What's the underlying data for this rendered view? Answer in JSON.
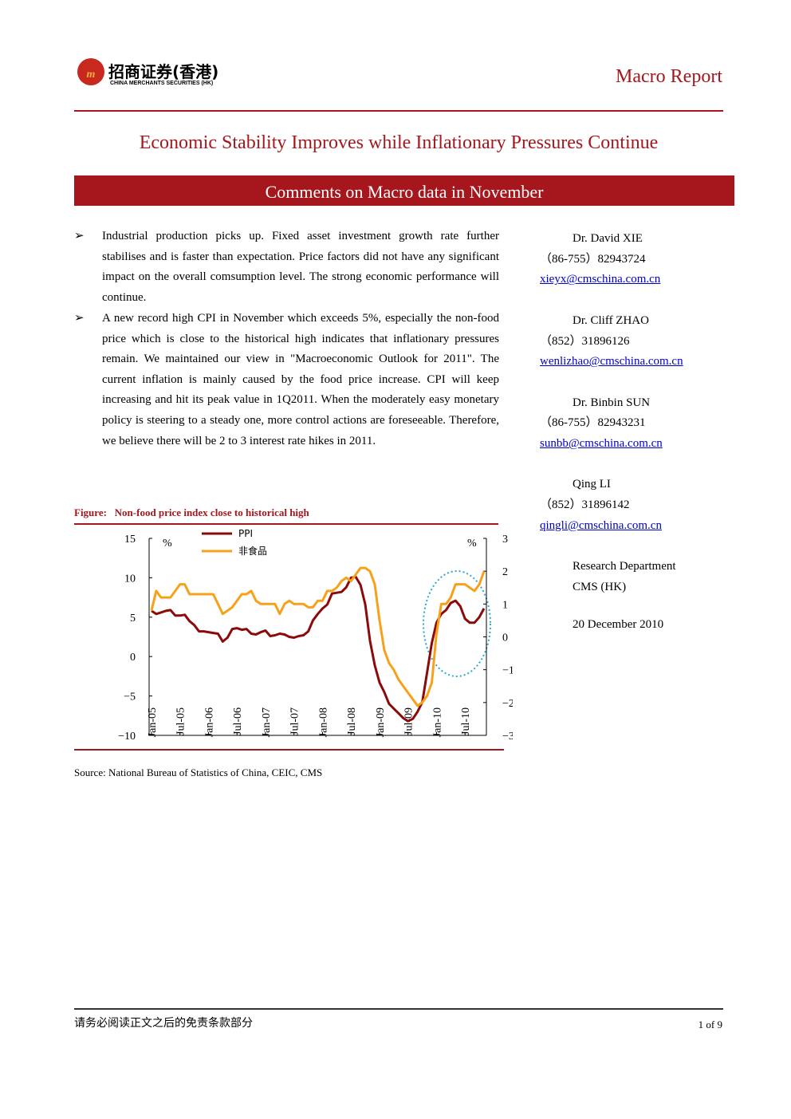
{
  "header": {
    "logo_cn": "招商证券(香港)",
    "logo_en": "CHINA MERCHANTS SECURITIES (HK)",
    "report_type": "Macro Report"
  },
  "title": "Economic Stability Improves while Inflationary Pressures Continue",
  "banner": "Comments on Macro data in November",
  "bullets": [
    "Industrial production picks up. Fixed asset investment growth rate further stabilises and is faster than expectation. Price factors did not have any significant impact on the overall comsumption level. The strong economic performance will continue.",
    "A new record high CPI in November which exceeds 5%, especially the non-food price which is close to the historical high indicates that inflationary pressures remain. We maintained our view in \"Macroeconomic Outlook for 2011\". The current inflation is mainly caused by the food price increase. CPI will keep increasing and hit its peak value in 1Q2011. When the moderately easy monetary policy is steering to a steady one, more control actions are foreseeable. Therefore, we believe there will be 2 to 3 interest rate hikes in 2011."
  ],
  "contacts": [
    {
      "name": "Dr. David XIE",
      "phone": "（86-755）82943724",
      "email": "xieyx@cmschina.com.cn"
    },
    {
      "name": "Dr. Cliff ZHAO",
      "phone": "（852）31896126",
      "email": "wenlizhao@cmschina.com.cn"
    },
    {
      "name": "Dr. Binbin SUN",
      "phone": "（86-755）82943231",
      "email": "sunbb@cmschina.com.cn"
    },
    {
      "name": "Qing LI",
      "phone": "（852）31896142",
      "email": "qingli@cmschina.com.cn"
    }
  ],
  "department": [
    "Research Department",
    "CMS (HK)"
  ],
  "date": "20 December 2010",
  "figure": {
    "label": "Figure:",
    "caption": "Non-food price index close to historical high"
  },
  "chart_data": {
    "type": "line",
    "categories": [
      "Jan-05",
      null,
      null,
      null,
      null,
      null,
      "Jul-05",
      null,
      null,
      null,
      null,
      null,
      "Jan-06",
      null,
      null,
      null,
      null,
      null,
      "Jul-06",
      null,
      null,
      null,
      null,
      null,
      "Jan-07",
      null,
      null,
      null,
      null,
      null,
      "Jul-07",
      null,
      null,
      null,
      null,
      null,
      "Jan-08",
      null,
      null,
      null,
      null,
      null,
      "Jul-08",
      null,
      null,
      null,
      null,
      null,
      "Jan-09",
      null,
      null,
      null,
      null,
      null,
      "Jul-09",
      null,
      null,
      null,
      null,
      null,
      "Jan-10",
      null,
      null,
      null,
      null,
      null,
      "Jul-10",
      null,
      null,
      null,
      null
    ],
    "series": [
      {
        "name": "PPI",
        "color": "#8b0a0a",
        "values": [
          5.8,
          5.4,
          5.6,
          5.8,
          5.9,
          5.2,
          5.2,
          5.3,
          4.5,
          4.0,
          3.2,
          3.2,
          3.1,
          3.0,
          2.9,
          1.9,
          2.4,
          3.5,
          3.6,
          3.4,
          3.5,
          2.9,
          2.8,
          3.1,
          3.3,
          2.6,
          2.7,
          2.9,
          2.8,
          2.5,
          2.4,
          2.6,
          2.7,
          3.2,
          4.6,
          5.4,
          6.1,
          6.6,
          8.0,
          8.1,
          8.2,
          8.8,
          10.0,
          10.1,
          9.1,
          6.6,
          2.0,
          -1.1,
          -3.3,
          -4.5,
          -6.0,
          -6.6,
          -7.2,
          -7.8,
          -8.2,
          -7.9,
          -7.0,
          -5.8,
          -2.1,
          1.7,
          4.3,
          5.4,
          5.9,
          6.8,
          7.1,
          6.4,
          4.8,
          4.3,
          4.3,
          5.0,
          6.1
        ]
      },
      {
        "name": "非食品",
        "color": "#f7a11a",
        "axis": "y2",
        "values": [
          0.8,
          1.4,
          1.2,
          1.2,
          1.2,
          1.4,
          1.6,
          1.6,
          1.3,
          1.3,
          1.3,
          1.3,
          1.3,
          1.3,
          1.0,
          0.7,
          0.8,
          0.9,
          1.1,
          1.3,
          1.3,
          1.4,
          1.1,
          1.0,
          1.0,
          1.0,
          1.0,
          0.7,
          1.0,
          1.1,
          1.0,
          1.0,
          1.0,
          0.9,
          0.9,
          1.1,
          1.1,
          1.4,
          1.4,
          1.5,
          1.7,
          1.8,
          1.7,
          1.9,
          2.1,
          2.1,
          2.0,
          1.6,
          0.5,
          -0.4,
          -0.8,
          -1.0,
          -1.3,
          -1.5,
          -1.7,
          -1.9,
          -2.1,
          -2.0,
          -1.8,
          -1.4,
          0.1,
          1.0,
          1.0,
          1.2,
          1.6,
          1.6,
          1.6,
          1.5,
          1.4,
          1.6,
          2.0
        ]
      }
    ],
    "ylabel": "%",
    "y2label": "%",
    "ylim": [
      -10,
      15
    ],
    "yticks": [
      {
        "value": -10,
        "label": "−10"
      },
      {
        "value": -5,
        "label": "−5"
      },
      0,
      5,
      10,
      15
    ],
    "y2lim": [
      -3,
      3
    ],
    "y2ticks": [
      {
        "value": -3,
        "label": "−3"
      },
      {
        "value": -2,
        "label": "−2"
      },
      {
        "value": -1,
        "label": "−1"
      },
      0,
      1,
      2,
      3
    ],
    "legend": "upper left"
  },
  "source": "Source: National Bureau of Statistics of China, CEIC, CMS",
  "footer": {
    "disclaimer": "请务必阅读正文之后的免责条款部分",
    "page": "1 of 9"
  }
}
